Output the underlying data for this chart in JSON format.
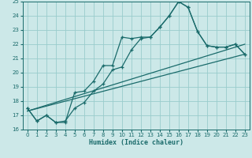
{
  "xlabel": "Humidex (Indice chaleur)",
  "background_color": "#cce8e8",
  "grid_color": "#99cccc",
  "line_color": "#1a6b6b",
  "xlim": [
    -0.5,
    23.5
  ],
  "ylim": [
    16,
    25
  ],
  "xticks": [
    0,
    1,
    2,
    3,
    4,
    5,
    6,
    7,
    8,
    9,
    10,
    11,
    12,
    13,
    14,
    15,
    16,
    17,
    18,
    19,
    20,
    21,
    22,
    23
  ],
  "yticks": [
    16,
    17,
    18,
    19,
    20,
    21,
    22,
    23,
    24,
    25
  ],
  "line1_x": [
    0,
    1,
    2,
    3,
    4,
    5,
    6,
    7,
    8,
    9,
    10,
    11,
    12,
    13,
    14,
    15,
    16,
    17,
    18,
    19,
    20,
    21,
    22,
    23
  ],
  "line1_y": [
    17.5,
    16.6,
    17.0,
    16.5,
    16.5,
    18.6,
    18.7,
    19.4,
    20.5,
    20.5,
    22.5,
    22.4,
    22.5,
    22.5,
    23.2,
    24.0,
    25.0,
    24.6,
    22.9,
    21.9,
    21.8,
    21.8,
    22.0,
    21.3
  ],
  "line2_x": [
    0,
    1,
    2,
    3,
    4,
    5,
    6,
    7,
    8,
    9,
    10,
    11,
    12,
    13,
    14,
    15,
    16,
    17,
    18,
    19,
    20,
    21,
    22,
    23
  ],
  "line2_y": [
    17.5,
    16.6,
    17.0,
    16.5,
    16.6,
    17.5,
    17.9,
    18.7,
    19.2,
    20.2,
    20.4,
    21.6,
    22.4,
    22.5,
    23.2,
    24.0,
    25.0,
    24.6,
    22.9,
    21.9,
    21.8,
    21.8,
    22.0,
    21.3
  ],
  "line3_x": [
    0,
    23
  ],
  "line3_y": [
    17.3,
    21.3
  ],
  "line4_x": [
    0,
    23
  ],
  "line4_y": [
    17.3,
    22.0
  ]
}
